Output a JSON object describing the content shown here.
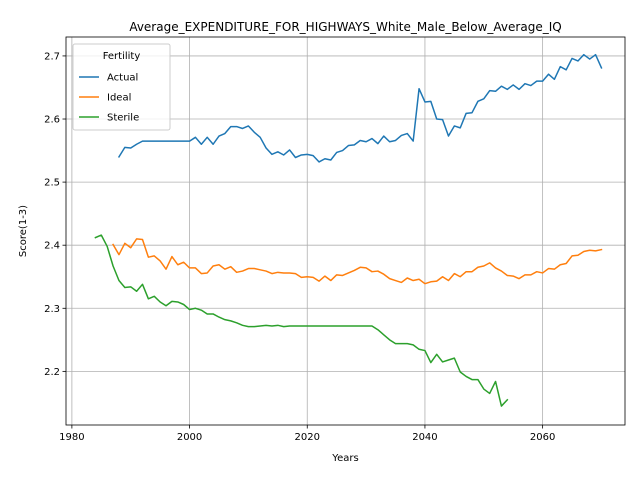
{
  "chart_data": {
    "type": "line",
    "title": "Average_EXPENDITURE_FOR_HIGHWAYS_White_Male_Below_Average_IQ",
    "xlabel": "Years",
    "ylabel": "Score(1-3)",
    "xlim": [
      1979,
      2074
    ],
    "ylim": [
      2.115,
      2.73
    ],
    "xticks": [
      1980,
      2000,
      2020,
      2040,
      2060
    ],
    "yticks": [
      2.2,
      2.3,
      2.4,
      2.5,
      2.6,
      2.7
    ],
    "grid": true,
    "legend": {
      "title": "Fertility",
      "position": "top-left"
    },
    "series": [
      {
        "name": "Actual",
        "color": "#1f77b4",
        "x": [
          1988,
          1989,
          1990,
          1991,
          1992,
          1993,
          1994,
          1995,
          1996,
          1997,
          1998,
          1999,
          2000,
          2001,
          2002,
          2003,
          2004,
          2005,
          2006,
          2007,
          2008,
          2009,
          2010,
          2011,
          2012,
          2013,
          2014,
          2015,
          2016,
          2017,
          2018,
          2019,
          2020,
          2021,
          2022,
          2023,
          2024,
          2025,
          2026,
          2027,
          2028,
          2029,
          2030,
          2031,
          2032,
          2033,
          2034,
          2035,
          2036,
          2037,
          2038,
          2039,
          2040,
          2041,
          2042,
          2043,
          2044,
          2045,
          2046,
          2047,
          2048,
          2049,
          2050,
          2051,
          2052,
          2053,
          2054,
          2055,
          2056,
          2057,
          2058,
          2059,
          2060,
          2061,
          2062,
          2063,
          2064,
          2065,
          2066,
          2067,
          2068,
          2069,
          2070
        ],
        "values": [
          2.54,
          2.555,
          2.554,
          2.56,
          2.565,
          2.565,
          2.565,
          2.565,
          2.565,
          2.565,
          2.565,
          2.565,
          2.565,
          2.571,
          2.56,
          2.571,
          2.56,
          2.573,
          2.577,
          2.588,
          2.588,
          2.585,
          2.589,
          2.579,
          2.571,
          2.554,
          2.544,
          2.548,
          2.543,
          2.551,
          2.539,
          2.543,
          2.544,
          2.542,
          2.532,
          2.537,
          2.535,
          2.547,
          2.55,
          2.558,
          2.559,
          2.566,
          2.564,
          2.569,
          2.561,
          2.573,
          2.564,
          2.566,
          2.574,
          2.577,
          2.565,
          2.648,
          2.627,
          2.628,
          2.6,
          2.599,
          2.573,
          2.589,
          2.586,
          2.609,
          2.61,
          2.628,
          2.632,
          2.645,
          2.644,
          2.652,
          2.647,
          2.654,
          2.647,
          2.656,
          2.653,
          2.66,
          2.66,
          2.671,
          2.663,
          2.683,
          2.678,
          2.696,
          2.692,
          2.702,
          2.695,
          2.702,
          2.681
        ]
      },
      {
        "name": "Ideal",
        "color": "#ff7f0e",
        "x": [
          1987,
          1988,
          1989,
          1990,
          1991,
          1992,
          1993,
          1994,
          1995,
          1996,
          1997,
          1998,
          1999,
          2000,
          2001,
          2002,
          2003,
          2004,
          2005,
          2006,
          2007,
          2008,
          2009,
          2010,
          2011,
          2012,
          2013,
          2014,
          2015,
          2016,
          2017,
          2018,
          2019,
          2020,
          2021,
          2022,
          2023,
          2024,
          2025,
          2026,
          2027,
          2028,
          2029,
          2030,
          2031,
          2032,
          2033,
          2034,
          2035,
          2036,
          2037,
          2038,
          2039,
          2040,
          2041,
          2042,
          2043,
          2044,
          2045,
          2046,
          2047,
          2048,
          2049,
          2050,
          2051,
          2052,
          2053,
          2054,
          2055,
          2056,
          2057,
          2058,
          2059,
          2060,
          2061,
          2062,
          2063,
          2064,
          2065,
          2066,
          2067,
          2068,
          2069,
          2070
        ],
        "values": [
          2.401,
          2.385,
          2.403,
          2.396,
          2.41,
          2.409,
          2.381,
          2.383,
          2.375,
          2.362,
          2.382,
          2.369,
          2.373,
          2.364,
          2.364,
          2.355,
          2.356,
          2.367,
          2.369,
          2.362,
          2.366,
          2.357,
          2.359,
          2.363,
          2.363,
          2.361,
          2.359,
          2.355,
          2.357,
          2.356,
          2.356,
          2.355,
          2.349,
          2.35,
          2.349,
          2.343,
          2.351,
          2.344,
          2.353,
          2.352,
          2.356,
          2.36,
          2.365,
          2.364,
          2.358,
          2.359,
          2.354,
          2.347,
          2.344,
          2.341,
          2.348,
          2.344,
          2.346,
          2.339,
          2.342,
          2.343,
          2.35,
          2.344,
          2.355,
          2.35,
          2.358,
          2.358,
          2.365,
          2.367,
          2.372,
          2.364,
          2.359,
          2.352,
          2.351,
          2.347,
          2.353,
          2.353,
          2.358,
          2.356,
          2.363,
          2.362,
          2.369,
          2.371,
          2.383,
          2.384,
          2.39,
          2.392,
          2.391,
          2.393
        ]
      },
      {
        "name": "Sterile",
        "color": "#2ca02c",
        "x": [
          1984,
          1985,
          1986,
          1987,
          1988,
          1989,
          1990,
          1991,
          1992,
          1993,
          1994,
          1995,
          1996,
          1997,
          1998,
          1999,
          2000,
          2001,
          2002,
          2003,
          2004,
          2005,
          2006,
          2007,
          2008,
          2009,
          2010,
          2011,
          2012,
          2013,
          2014,
          2015,
          2016,
          2017,
          2018,
          2019,
          2020,
          2021,
          2022,
          2023,
          2024,
          2025,
          2026,
          2027,
          2028,
          2029,
          2030,
          2031,
          2032,
          2033,
          2034,
          2035,
          2036,
          2037,
          2038,
          2039,
          2040,
          2041,
          2042,
          2043,
          2044,
          2045,
          2046,
          2047,
          2048,
          2049,
          2050,
          2051,
          2052,
          2053,
          2054
        ],
        "values": [
          2.412,
          2.416,
          2.398,
          2.367,
          2.344,
          2.333,
          2.334,
          2.327,
          2.338,
          2.315,
          2.319,
          2.31,
          2.304,
          2.311,
          2.31,
          2.306,
          2.298,
          2.3,
          2.297,
          2.291,
          2.291,
          2.286,
          2.282,
          2.28,
          2.277,
          2.273,
          2.271,
          2.271,
          2.272,
          2.273,
          2.272,
          2.273,
          2.271,
          2.272,
          2.272,
          2.272,
          2.272,
          2.272,
          2.272,
          2.272,
          2.272,
          2.272,
          2.272,
          2.272,
          2.272,
          2.272,
          2.272,
          2.272,
          2.266,
          2.258,
          2.25,
          2.244,
          2.244,
          2.244,
          2.242,
          2.235,
          2.233,
          2.214,
          2.227,
          2.215,
          2.218,
          2.221,
          2.199,
          2.192,
          2.187,
          2.187,
          2.172,
          2.165,
          2.184,
          2.145,
          2.155
        ]
      }
    ]
  }
}
